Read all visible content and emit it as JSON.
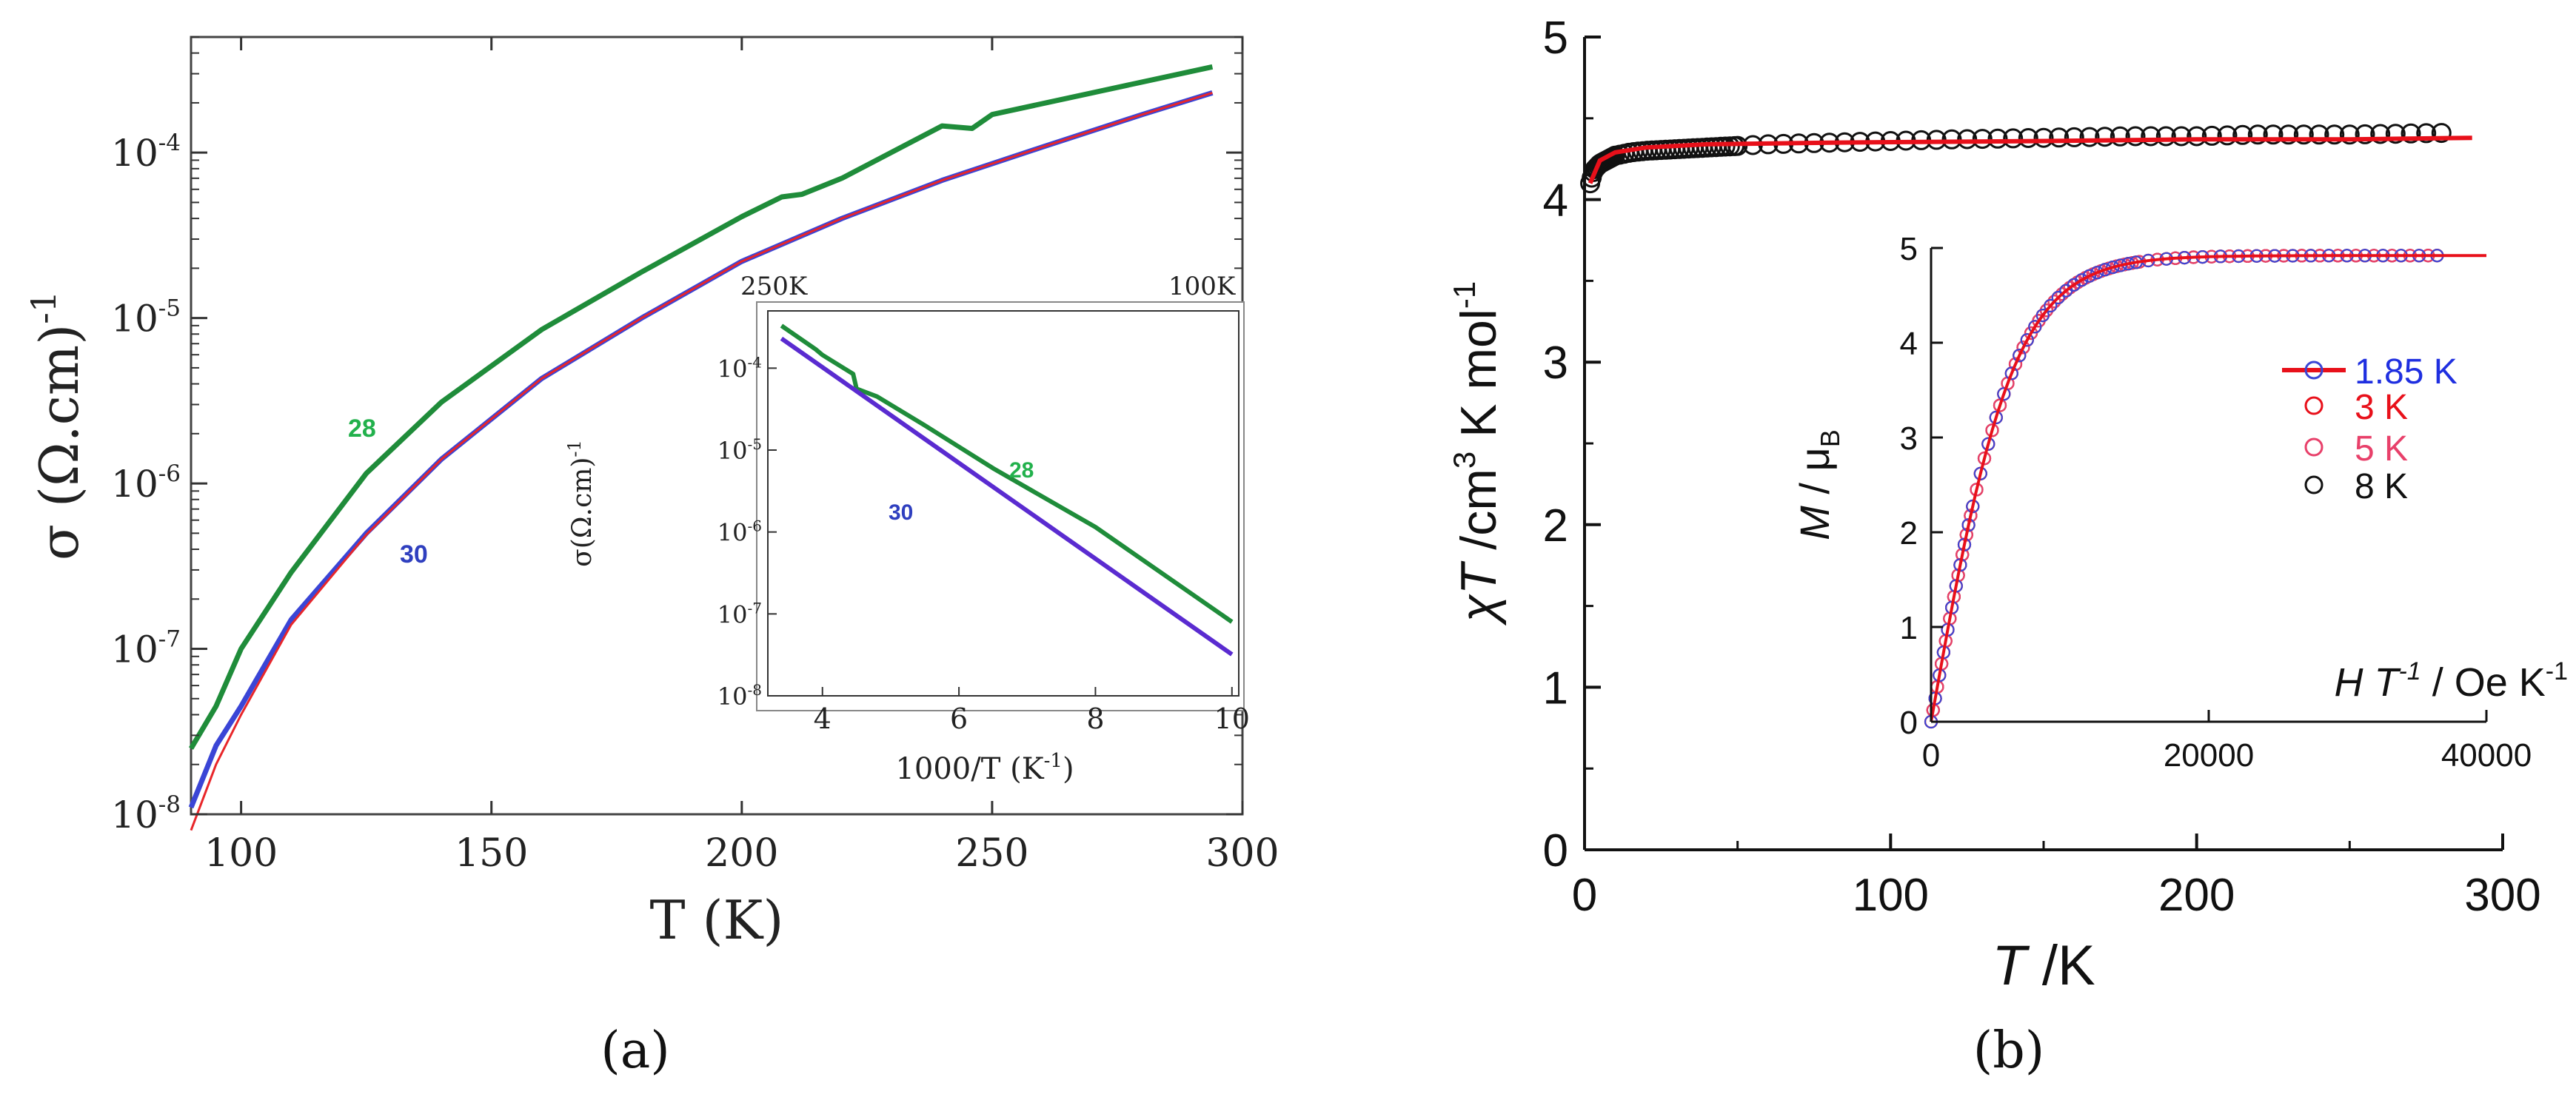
{
  "chart_data": [
    {
      "id": "a",
      "panel_label": "(a)",
      "type": "line",
      "title": "",
      "xlabel": "T (K)",
      "ylabel": "σ (Ω.cm)",
      "ylabel_sup": "-1",
      "xlim": [
        90,
        300
      ],
      "ylim": [
        1e-08,
        0.0005
      ],
      "yscale": "log",
      "grid": false,
      "xticks": [
        100,
        150,
        200,
        250,
        300
      ],
      "yticks": [
        {
          "base": "10",
          "exp": "-8",
          "value": 1e-08
        },
        {
          "base": "10",
          "exp": "-7",
          "value": 1e-07
        },
        {
          "base": "10",
          "exp": "-6",
          "value": 1e-06
        },
        {
          "base": "10",
          "exp": "-5",
          "value": 1e-05
        },
        {
          "base": "10",
          "exp": "-4",
          "value": 0.0001
        }
      ],
      "series": [
        {
          "name": "28",
          "color": "#1f8c3a",
          "x": [
            90,
            95,
            100,
            110,
            125,
            140,
            160,
            180,
            200,
            208,
            212,
            220,
            240,
            246,
            250,
            270,
            294
          ],
          "y": [
            2.5e-08,
            4.5e-08,
            1e-07,
            2.9e-07,
            1.15e-06,
            3.1e-06,
            8.5e-06,
            1.9e-05,
            4.1e-05,
            5.4e-05,
            5.6e-05,
            7e-05,
            0.000145,
            0.00014,
            0.00017,
            0.00023,
            0.00033
          ]
        },
        {
          "name": "30",
          "color": "#3a45d6",
          "x": [
            90,
            95,
            100,
            110,
            125,
            140,
            160,
            180,
            200,
            220,
            240,
            260,
            280,
            294
          ],
          "y": [
            1.1e-08,
            2.6e-08,
            4.5e-08,
            1.5e-07,
            5e-07,
            1.4e-06,
            4.3e-06,
            1e-05,
            2.2e-05,
            4e-05,
            6.8e-05,
            0.000108,
            0.00017,
            0.00023
          ]
        },
        {
          "name": "fit",
          "color": "#e8262a",
          "x": [
            90,
            95,
            100,
            110,
            125,
            140,
            160,
            180,
            200,
            220,
            240,
            260,
            280,
            294
          ],
          "y": [
            8e-09,
            2e-08,
            4e-08,
            1.4e-07,
            4.9e-07,
            1.4e-06,
            4.3e-06,
            1e-05,
            2.2e-05,
            4e-05,
            6.8e-05,
            0.000108,
            0.00017,
            0.00023
          ]
        }
      ],
      "annotations": [
        {
          "text": "28",
          "color": "#22b14c"
        },
        {
          "text": "30",
          "color": "#2f3fbf"
        }
      ],
      "inset": {
        "type": "line",
        "xlabel": "1000/T (K",
        "xlabel_sup": "-1",
        "xlabel_tail": ")",
        "ylabel": "σ(Ω.cm)",
        "ylabel_sup": "-1",
        "top_labels": [
          "250K",
          "100K"
        ],
        "xlim": [
          3.2,
          10.1
        ],
        "ylim": [
          1e-08,
          0.0005
        ],
        "yscale": "log",
        "xticks": [
          4,
          6,
          8,
          10
        ],
        "yticks": [
          {
            "base": "10",
            "exp": "-8",
            "value": 1e-08
          },
          {
            "base": "10",
            "exp": "-7",
            "value": 1e-07
          },
          {
            "base": "10",
            "exp": "-6",
            "value": 1e-06
          },
          {
            "base": "10",
            "exp": "-5",
            "value": 1e-05
          },
          {
            "base": "10",
            "exp": "-4",
            "value": 0.0001
          }
        ],
        "series": [
          {
            "name": "28",
            "color": "#1f8c3a",
            "x": [
              3.4,
              3.9,
              4.0,
              4.45,
              4.5,
              4.8,
              5.5,
              6.5,
              8.0,
              10.0
            ],
            "y": [
              0.00033,
              0.00017,
              0.000145,
              8.5e-05,
              5.6e-05,
              4.5e-05,
              2e-05,
              6e-06,
              1.15e-06,
              8e-08
            ]
          },
          {
            "name": "30",
            "color": "#5a2bd0",
            "x": [
              3.4,
              10.0
            ],
            "y": [
              0.00023,
              3.2e-08
            ]
          }
        ],
        "annotations": [
          {
            "text": "28",
            "color": "#22b14c"
          },
          {
            "text": "30",
            "color": "#2f3fbf"
          }
        ]
      }
    },
    {
      "id": "b",
      "panel_label": "(b)",
      "type": "scatter",
      "title": "",
      "xlabel_italic": "T",
      "xlabel_unit": " /K",
      "ylabel_italic": "χT",
      "ylabel_unit": " /cm",
      "ylabel_sup1": "3",
      "ylabel_mid": " K mol",
      "ylabel_sup2": "-1",
      "xlim": [
        0,
        300
      ],
      "ylim": [
        0,
        5
      ],
      "grid": false,
      "xticks": [
        0,
        100,
        200,
        300
      ],
      "yticks": [
        0,
        1,
        2,
        3,
        4,
        5
      ],
      "series": [
        {
          "name": "χT data",
          "marker": "open-circle",
          "color": "#111111",
          "x": [
            1.85,
            3,
            5,
            8,
            10,
            15,
            20,
            30,
            40,
            50,
            60,
            80,
            100,
            120,
            150,
            180,
            200,
            220,
            250,
            280
          ],
          "y": [
            4.1,
            4.18,
            4.22,
            4.25,
            4.27,
            4.29,
            4.3,
            4.31,
            4.32,
            4.33,
            4.34,
            4.35,
            4.36,
            4.37,
            4.38,
            4.39,
            4.39,
            4.4,
            4.4,
            4.41
          ]
        },
        {
          "name": "fit",
          "color": "#e8101a",
          "x": [
            1.85,
            5,
            10,
            20,
            40,
            80,
            150,
            200,
            250,
            290
          ],
          "y": [
            4.1,
            4.24,
            4.29,
            4.32,
            4.34,
            4.35,
            4.36,
            4.37,
            4.37,
            4.38
          ]
        }
      ],
      "inset": {
        "type": "scatter",
        "xlabel_italic1": "H T",
        "xlabel_sup1": "-1",
        "xlabel_mid": " / Oe K",
        "xlabel_sup2": "-1",
        "ylabel_italic": "M",
        "ylabel_mid": " / μ",
        "ylabel_sub": "B",
        "xlim": [
          0,
          40000
        ],
        "ylim": [
          0,
          5
        ],
        "xticks": [
          0,
          20000,
          40000
        ],
        "yticks": [
          0,
          1,
          2,
          3,
          4,
          5
        ],
        "legend": [
          {
            "label": "1.85 K",
            "marker_color": "#3a45d6",
            "text_color": "#1f2fe0",
            "line_color": "#e8101a"
          },
          {
            "label": "3 K",
            "marker_color": "#e8101a",
            "text_color": "#e8101a"
          },
          {
            "label": "5 K",
            "marker_color": "#e8406a",
            "text_color": "#e8406a"
          },
          {
            "label": "8 K",
            "marker_color": "#111111",
            "text_color": "#111111"
          }
        ],
        "curve_Msat": 4.92,
        "curve_scale": 6000,
        "curve_xmax": 36500
      }
    }
  ]
}
